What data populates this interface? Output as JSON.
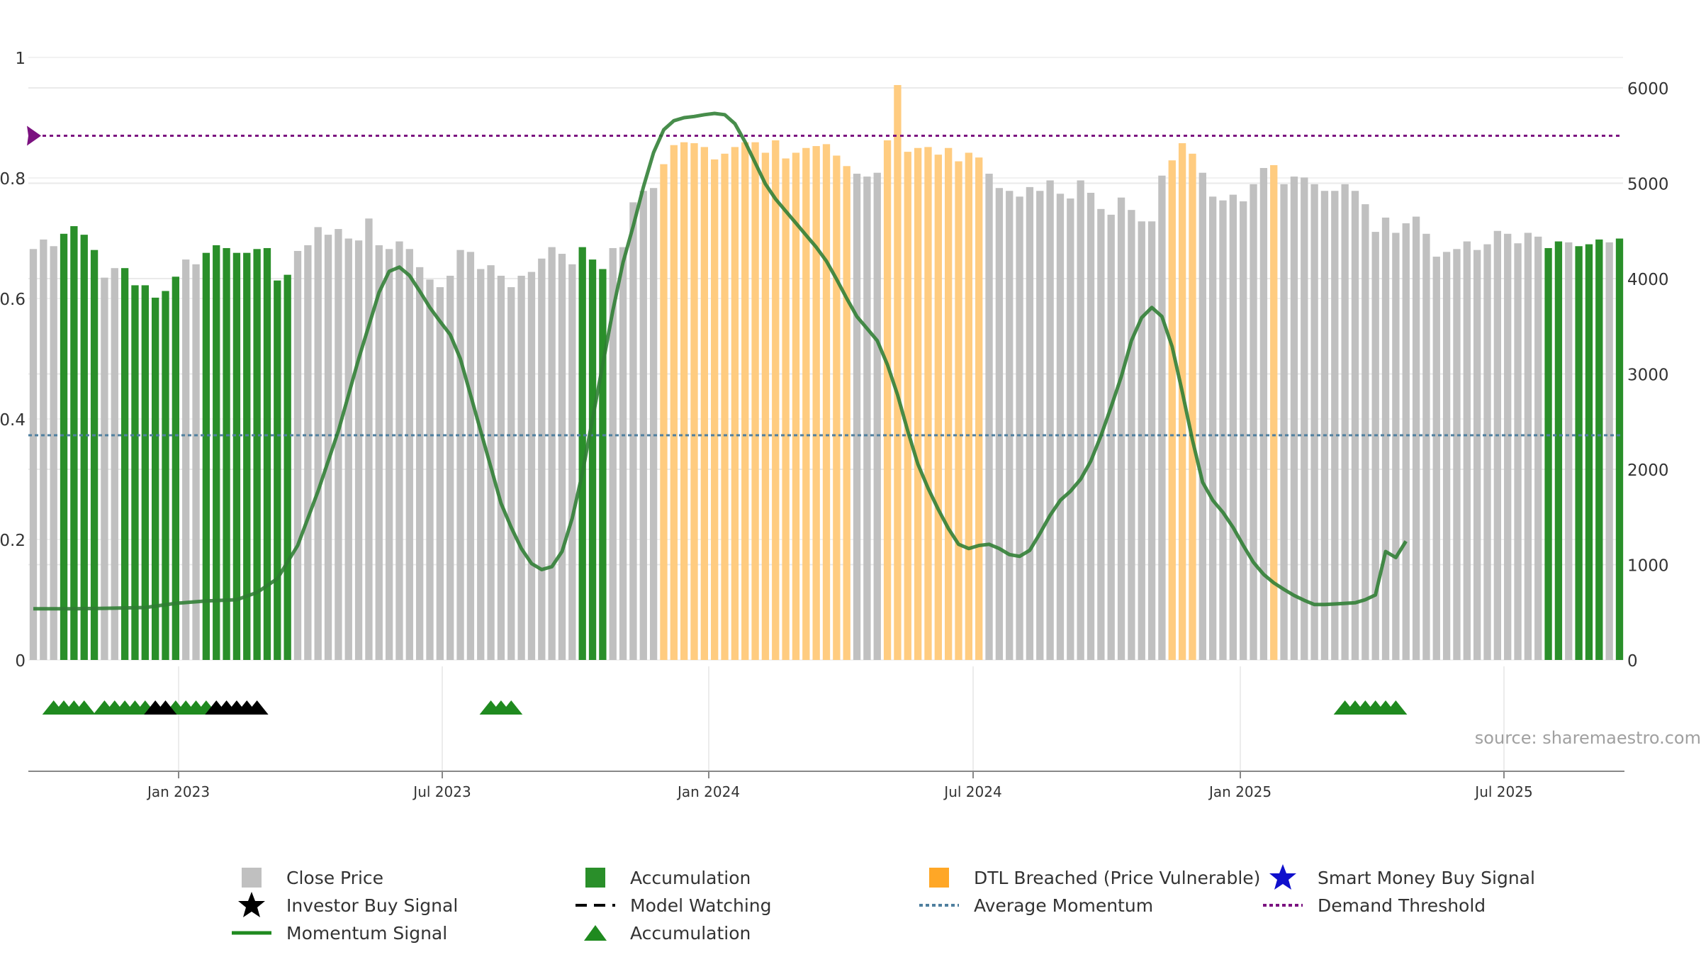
{
  "chart_data": {
    "type": "bar",
    "source_note": "source: sharemaestro.com",
    "left_axis": {
      "range": [
        0,
        1
      ],
      "ticks": [
        "0",
        "0.2",
        "0.4",
        "0.6",
        "0.8",
        "1"
      ]
    },
    "right_axis": {
      "range": [
        0,
        6000
      ],
      "ticks": [
        "0",
        "1000",
        "2000",
        "3000",
        "4000",
        "5000",
        "6000"
      ]
    },
    "x_axis": {
      "ticks": [
        "Jan 2023",
        "Jul 2023",
        "Jan 2024",
        "Jul 2024",
        "Jan 2025",
        "Jul 2025"
      ]
    },
    "reference_lines": {
      "demand_threshold": 0.87,
      "average_momentum": 0.373
    },
    "bars": [
      {
        "v": 4310,
        "s": "close"
      },
      {
        "v": 4410,
        "s": "close"
      },
      {
        "v": 4340,
        "s": "close"
      },
      {
        "v": 4470,
        "s": "acc"
      },
      {
        "v": 4550,
        "s": "acc"
      },
      {
        "v": 4460,
        "s": "acc"
      },
      {
        "v": 4300,
        "s": "acc"
      },
      {
        "v": 4010,
        "s": "close"
      },
      {
        "v": 4110,
        "s": "close"
      },
      {
        "v": 4110,
        "s": "acc"
      },
      {
        "v": 3930,
        "s": "acc"
      },
      {
        "v": 3930,
        "s": "acc"
      },
      {
        "v": 3800,
        "s": "acc"
      },
      {
        "v": 3870,
        "s": "acc"
      },
      {
        "v": 4020,
        "s": "acc"
      },
      {
        "v": 4200,
        "s": "close"
      },
      {
        "v": 4150,
        "s": "close"
      },
      {
        "v": 4270,
        "s": "acc"
      },
      {
        "v": 4350,
        "s": "acc"
      },
      {
        "v": 4320,
        "s": "acc"
      },
      {
        "v": 4270,
        "s": "acc"
      },
      {
        "v": 4270,
        "s": "acc"
      },
      {
        "v": 4310,
        "s": "acc"
      },
      {
        "v": 4320,
        "s": "acc"
      },
      {
        "v": 3980,
        "s": "acc"
      },
      {
        "v": 4040,
        "s": "acc"
      },
      {
        "v": 4290,
        "s": "close"
      },
      {
        "v": 4350,
        "s": "close"
      },
      {
        "v": 4540,
        "s": "close"
      },
      {
        "v": 4460,
        "s": "close"
      },
      {
        "v": 4520,
        "s": "close"
      },
      {
        "v": 4420,
        "s": "close"
      },
      {
        "v": 4400,
        "s": "close"
      },
      {
        "v": 4630,
        "s": "close"
      },
      {
        "v": 4350,
        "s": "close"
      },
      {
        "v": 4310,
        "s": "close"
      },
      {
        "v": 4390,
        "s": "close"
      },
      {
        "v": 4310,
        "s": "close"
      },
      {
        "v": 4120,
        "s": "close"
      },
      {
        "v": 3990,
        "s": "close"
      },
      {
        "v": 3910,
        "s": "close"
      },
      {
        "v": 4030,
        "s": "close"
      },
      {
        "v": 4300,
        "s": "close"
      },
      {
        "v": 4280,
        "s": "close"
      },
      {
        "v": 4100,
        "s": "close"
      },
      {
        "v": 4140,
        "s": "close"
      },
      {
        "v": 4030,
        "s": "close"
      },
      {
        "v": 3910,
        "s": "close"
      },
      {
        "v": 4030,
        "s": "close"
      },
      {
        "v": 4070,
        "s": "close"
      },
      {
        "v": 4210,
        "s": "close"
      },
      {
        "v": 4330,
        "s": "close"
      },
      {
        "v": 4260,
        "s": "close"
      },
      {
        "v": 4150,
        "s": "close"
      },
      {
        "v": 4330,
        "s": "acc"
      },
      {
        "v": 4200,
        "s": "acc"
      },
      {
        "v": 4100,
        "s": "acc"
      },
      {
        "v": 4320,
        "s": "close"
      },
      {
        "v": 4330,
        "s": "close"
      },
      {
        "v": 4800,
        "s": "close"
      },
      {
        "v": 4920,
        "s": "close"
      },
      {
        "v": 4950,
        "s": "close"
      },
      {
        "v": 5200,
        "s": "dtl"
      },
      {
        "v": 5400,
        "s": "dtl"
      },
      {
        "v": 5430,
        "s": "dtl"
      },
      {
        "v": 5420,
        "s": "dtl"
      },
      {
        "v": 5380,
        "s": "dtl"
      },
      {
        "v": 5250,
        "s": "dtl"
      },
      {
        "v": 5310,
        "s": "dtl"
      },
      {
        "v": 5380,
        "s": "dtl"
      },
      {
        "v": 5430,
        "s": "dtl"
      },
      {
        "v": 5430,
        "s": "dtl"
      },
      {
        "v": 5320,
        "s": "dtl"
      },
      {
        "v": 5450,
        "s": "dtl"
      },
      {
        "v": 5260,
        "s": "dtl"
      },
      {
        "v": 5320,
        "s": "dtl"
      },
      {
        "v": 5370,
        "s": "dtl"
      },
      {
        "v": 5390,
        "s": "dtl"
      },
      {
        "v": 5410,
        "s": "dtl"
      },
      {
        "v": 5290,
        "s": "dtl"
      },
      {
        "v": 5180,
        "s": "dtl"
      },
      {
        "v": 5100,
        "s": "close"
      },
      {
        "v": 5070,
        "s": "close"
      },
      {
        "v": 5110,
        "s": "close"
      },
      {
        "v": 5450,
        "s": "dtl"
      },
      {
        "v": 6030,
        "s": "dtl"
      },
      {
        "v": 5330,
        "s": "dtl"
      },
      {
        "v": 5370,
        "s": "dtl"
      },
      {
        "v": 5380,
        "s": "dtl"
      },
      {
        "v": 5300,
        "s": "dtl"
      },
      {
        "v": 5370,
        "s": "dtl"
      },
      {
        "v": 5230,
        "s": "dtl"
      },
      {
        "v": 5320,
        "s": "dtl"
      },
      {
        "v": 5270,
        "s": "dtl"
      },
      {
        "v": 5100,
        "s": "close"
      },
      {
        "v": 4950,
        "s": "close"
      },
      {
        "v": 4920,
        "s": "close"
      },
      {
        "v": 4860,
        "s": "close"
      },
      {
        "v": 4960,
        "s": "close"
      },
      {
        "v": 4920,
        "s": "close"
      },
      {
        "v": 5030,
        "s": "close"
      },
      {
        "v": 4890,
        "s": "close"
      },
      {
        "v": 4840,
        "s": "close"
      },
      {
        "v": 5030,
        "s": "close"
      },
      {
        "v": 4900,
        "s": "close"
      },
      {
        "v": 4730,
        "s": "close"
      },
      {
        "v": 4670,
        "s": "close"
      },
      {
        "v": 4850,
        "s": "close"
      },
      {
        "v": 4720,
        "s": "close"
      },
      {
        "v": 4600,
        "s": "close"
      },
      {
        "v": 4600,
        "s": "close"
      },
      {
        "v": 5080,
        "s": "close"
      },
      {
        "v": 5240,
        "s": "dtl"
      },
      {
        "v": 5420,
        "s": "dtl"
      },
      {
        "v": 5310,
        "s": "dtl"
      },
      {
        "v": 5110,
        "s": "close"
      },
      {
        "v": 4860,
        "s": "close"
      },
      {
        "v": 4820,
        "s": "close"
      },
      {
        "v": 4880,
        "s": "close"
      },
      {
        "v": 4810,
        "s": "close"
      },
      {
        "v": 4990,
        "s": "close"
      },
      {
        "v": 5160,
        "s": "close"
      },
      {
        "v": 5190,
        "s": "dtl"
      },
      {
        "v": 4990,
        "s": "close"
      },
      {
        "v": 5070,
        "s": "close"
      },
      {
        "v": 5060,
        "s": "close"
      },
      {
        "v": 4990,
        "s": "close"
      },
      {
        "v": 4920,
        "s": "close"
      },
      {
        "v": 4920,
        "s": "close"
      },
      {
        "v": 4990,
        "s": "close"
      },
      {
        "v": 4920,
        "s": "close"
      },
      {
        "v": 4780,
        "s": "close"
      },
      {
        "v": 4490,
        "s": "close"
      },
      {
        "v": 4640,
        "s": "close"
      },
      {
        "v": 4480,
        "s": "close"
      },
      {
        "v": 4580,
        "s": "close"
      },
      {
        "v": 4650,
        "s": "close"
      },
      {
        "v": 4470,
        "s": "close"
      },
      {
        "v": 4230,
        "s": "close"
      },
      {
        "v": 4280,
        "s": "close"
      },
      {
        "v": 4310,
        "s": "close"
      },
      {
        "v": 4390,
        "s": "close"
      },
      {
        "v": 4300,
        "s": "close"
      },
      {
        "v": 4360,
        "s": "close"
      },
      {
        "v": 4500,
        "s": "close"
      },
      {
        "v": 4470,
        "s": "close"
      },
      {
        "v": 4370,
        "s": "close"
      },
      {
        "v": 4480,
        "s": "close"
      },
      {
        "v": 4440,
        "s": "close"
      },
      {
        "v": 4320,
        "s": "acc"
      },
      {
        "v": 4390,
        "s": "acc"
      },
      {
        "v": 4380,
        "s": "close"
      },
      {
        "v": 4340,
        "s": "acc"
      },
      {
        "v": 4360,
        "s": "acc"
      },
      {
        "v": 4410,
        "s": "acc"
      },
      {
        "v": 4380,
        "s": "close"
      },
      {
        "v": 4420,
        "s": "acc"
      }
    ],
    "momentum_signal": [
      [
        0,
        0.085
      ],
      [
        4,
        0.085
      ],
      [
        8,
        0.086
      ],
      [
        11,
        0.087
      ],
      [
        14,
        0.094
      ],
      [
        17,
        0.098
      ],
      [
        20,
        0.1
      ],
      [
        22,
        0.112
      ],
      [
        24,
        0.135
      ],
      [
        26,
        0.19
      ],
      [
        28,
        0.28
      ],
      [
        30,
        0.38
      ],
      [
        32,
        0.5
      ],
      [
        34,
        0.61
      ],
      [
        35,
        0.645
      ],
      [
        36,
        0.652
      ],
      [
        37,
        0.638
      ],
      [
        38,
        0.612
      ],
      [
        39,
        0.585
      ],
      [
        40,
        0.562
      ],
      [
        41,
        0.54
      ],
      [
        42,
        0.5
      ],
      [
        43,
        0.44
      ],
      [
        44,
        0.38
      ],
      [
        45,
        0.32
      ],
      [
        46,
        0.26
      ],
      [
        47,
        0.22
      ],
      [
        48,
        0.185
      ],
      [
        49,
        0.16
      ],
      [
        50,
        0.15
      ],
      [
        51,
        0.155
      ],
      [
        52,
        0.18
      ],
      [
        53,
        0.235
      ],
      [
        54,
        0.31
      ],
      [
        55,
        0.4
      ],
      [
        56,
        0.49
      ],
      [
        57,
        0.58
      ],
      [
        58,
        0.66
      ],
      [
        59,
        0.72
      ],
      [
        60,
        0.785
      ],
      [
        61,
        0.842
      ],
      [
        62,
        0.88
      ],
      [
        63,
        0.895
      ],
      [
        64,
        0.9
      ],
      [
        65,
        0.902
      ],
      [
        66,
        0.905
      ],
      [
        67,
        0.907
      ],
      [
        68,
        0.905
      ],
      [
        69,
        0.89
      ],
      [
        70,
        0.86
      ],
      [
        71,
        0.825
      ],
      [
        72,
        0.79
      ],
      [
        73,
        0.765
      ],
      [
        74,
        0.745
      ],
      [
        75,
        0.725
      ],
      [
        76,
        0.705
      ],
      [
        77,
        0.685
      ],
      [
        78,
        0.662
      ],
      [
        79,
        0.632
      ],
      [
        80,
        0.6
      ],
      [
        81,
        0.57
      ],
      [
        82,
        0.55
      ],
      [
        83,
        0.53
      ],
      [
        84,
        0.49
      ],
      [
        85,
        0.44
      ],
      [
        86,
        0.38
      ],
      [
        87,
        0.325
      ],
      [
        88,
        0.285
      ],
      [
        89,
        0.25
      ],
      [
        90,
        0.218
      ],
      [
        91,
        0.192
      ],
      [
        92,
        0.185
      ],
      [
        93,
        0.19
      ],
      [
        94,
        0.192
      ],
      [
        95,
        0.185
      ],
      [
        96,
        0.175
      ],
      [
        97,
        0.172
      ],
      [
        98,
        0.182
      ],
      [
        99,
        0.21
      ],
      [
        100,
        0.24
      ],
      [
        101,
        0.265
      ],
      [
        102,
        0.28
      ],
      [
        103,
        0.3
      ],
      [
        104,
        0.33
      ],
      [
        105,
        0.372
      ],
      [
        106,
        0.42
      ],
      [
        107,
        0.47
      ],
      [
        108,
        0.53
      ],
      [
        109,
        0.568
      ],
      [
        110,
        0.585
      ],
      [
        111,
        0.57
      ],
      [
        112,
        0.52
      ],
      [
        113,
        0.445
      ],
      [
        114,
        0.365
      ],
      [
        115,
        0.295
      ],
      [
        116,
        0.265
      ],
      [
        117,
        0.245
      ],
      [
        118,
        0.22
      ],
      [
        119,
        0.19
      ],
      [
        120,
        0.162
      ],
      [
        121,
        0.142
      ],
      [
        122,
        0.128
      ],
      [
        123,
        0.117
      ],
      [
        124,
        0.107
      ],
      [
        125,
        0.099
      ],
      [
        126,
        0.092
      ],
      [
        127,
        0.092
      ],
      [
        128,
        0.093
      ],
      [
        129,
        0.094
      ],
      [
        130,
        0.095
      ],
      [
        131,
        0.1
      ],
      [
        132,
        0.108
      ],
      [
        133,
        0.18
      ],
      [
        134,
        0.17
      ],
      [
        135,
        0.197
      ]
    ],
    "signal_rows": {
      "accumulation_triangles": [
        2,
        3,
        4,
        5,
        7,
        8,
        9,
        10,
        11,
        14,
        15,
        16,
        17,
        45,
        46,
        47,
        129,
        130,
        131,
        132,
        133,
        134
      ],
      "investor_buy_stars": [
        12,
        13,
        18,
        19,
        20,
        21,
        22
      ]
    },
    "legend": [
      {
        "label": "Close Price",
        "icon": "gray-square-icon"
      },
      {
        "label": "Accumulation",
        "icon": "green-square-icon"
      },
      {
        "label": "DTL Breached (Price Vulnerable)",
        "icon": "orange-square-icon"
      },
      {
        "label": "Smart Money Buy Signal",
        "icon": "blue-star-icon"
      },
      {
        "label": "Investor Buy Signal",
        "icon": "black-star-icon"
      },
      {
        "label": "Model Watching",
        "icon": "dashed-line-icon"
      },
      {
        "label": "Average Momentum",
        "icon": "dotted-line-icon"
      },
      {
        "label": "Demand Threshold",
        "icon": "dotted-purple-line-icon"
      },
      {
        "label": "Momentum Signal",
        "icon": "green-line-icon"
      },
      {
        "label": "Accumulation",
        "icon": "green-triangle-icon"
      }
    ],
    "colors": {
      "close": "#c0c0c0",
      "acc": "#2a8f2a",
      "dtl": "#ffcc80",
      "momentum": "#2e7d32",
      "demand_threshold": "#7b1280",
      "average_momentum": "#4f7f9f",
      "accumulation_triangle": "#1f8a1f",
      "investor_star": "#000000",
      "smart_money_star": "#1010cc",
      "grid": "#eaeaea",
      "axis": "#888888"
    }
  }
}
